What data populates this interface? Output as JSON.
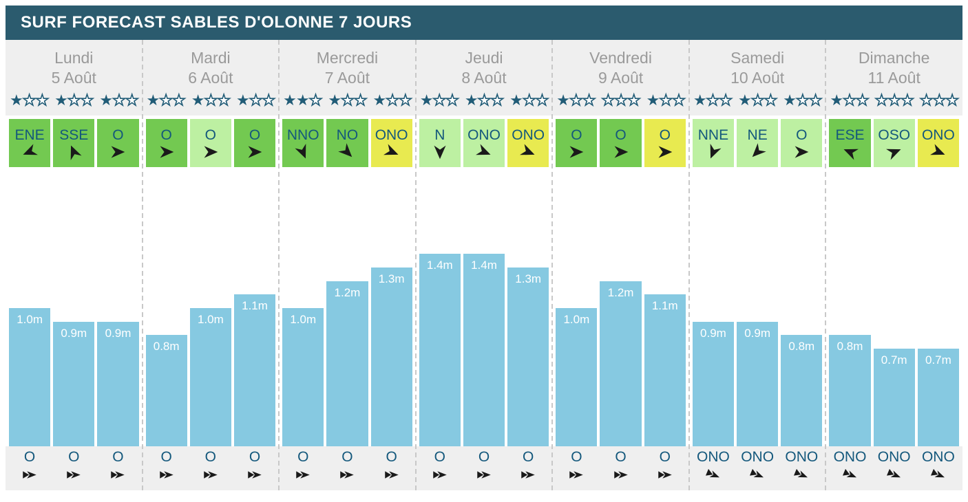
{
  "header": {
    "title": "SURF FORECAST SABLES D'OLONNE 7 JOURS"
  },
  "icons": {
    "star": "★",
    "wind_arrow": "arrowhead",
    "swell_arrow": "double-arrowhead"
  },
  "colors": {
    "header_bg": "#2b5b6e",
    "star_teal": "#215c77",
    "direction_label_teal": "#14587c",
    "wind_green": "#73c951",
    "wind_light_green": "#bdf0a2",
    "wind_yellow": "#e8ea50",
    "bar_blue": "#86c9e1",
    "band_gray": "#efefef",
    "day_text_gray": "#9a9a9a",
    "arrow_black": "#1a1a1a"
  },
  "days": [
    {
      "name": "Lundi",
      "date": "5 Août",
      "ratings": [
        1,
        1,
        1
      ],
      "wind": [
        {
          "dir": "ENE",
          "color": "green"
        },
        {
          "dir": "SSE",
          "color": "green"
        },
        {
          "dir": "O",
          "color": "green"
        }
      ],
      "waves": [
        {
          "label": "1.0m",
          "value": 1.0
        },
        {
          "label": "0.9m",
          "value": 0.9
        },
        {
          "label": "0.9m",
          "value": 0.9
        }
      ],
      "swell": [
        {
          "dir": "O"
        },
        {
          "dir": "O"
        },
        {
          "dir": "O"
        }
      ]
    },
    {
      "name": "Mardi",
      "date": "6 Août",
      "ratings": [
        1,
        1,
        1
      ],
      "wind": [
        {
          "dir": "O",
          "color": "green"
        },
        {
          "dir": "O",
          "color": "lightgreen"
        },
        {
          "dir": "O",
          "color": "green"
        }
      ],
      "waves": [
        {
          "label": "0.8m",
          "value": 0.8
        },
        {
          "label": "1.0m",
          "value": 1.0
        },
        {
          "label": "1.1m",
          "value": 1.1
        }
      ],
      "swell": [
        {
          "dir": "O"
        },
        {
          "dir": "O"
        },
        {
          "dir": "O"
        }
      ]
    },
    {
      "name": "Mercredi",
      "date": "7 Août",
      "ratings": [
        2,
        1,
        1
      ],
      "wind": [
        {
          "dir": "NNO",
          "color": "green"
        },
        {
          "dir": "NO",
          "color": "green"
        },
        {
          "dir": "ONO",
          "color": "yellow"
        }
      ],
      "waves": [
        {
          "label": "1.0m",
          "value": 1.0
        },
        {
          "label": "1.2m",
          "value": 1.2
        },
        {
          "label": "1.3m",
          "value": 1.3
        }
      ],
      "swell": [
        {
          "dir": "O"
        },
        {
          "dir": "O"
        },
        {
          "dir": "O"
        }
      ]
    },
    {
      "name": "Jeudi",
      "date": "8 Août",
      "ratings": [
        1,
        1,
        1
      ],
      "wind": [
        {
          "dir": "N",
          "color": "lightgreen"
        },
        {
          "dir": "ONO",
          "color": "lightgreen"
        },
        {
          "dir": "ONO",
          "color": "yellow"
        }
      ],
      "waves": [
        {
          "label": "1.4m",
          "value": 1.4
        },
        {
          "label": "1.4m",
          "value": 1.4
        },
        {
          "label": "1.3m",
          "value": 1.3
        }
      ],
      "swell": [
        {
          "dir": "O"
        },
        {
          "dir": "O"
        },
        {
          "dir": "O"
        }
      ]
    },
    {
      "name": "Vendredi",
      "date": "9 Août",
      "ratings": [
        1,
        0,
        1
      ],
      "wind": [
        {
          "dir": "O",
          "color": "green"
        },
        {
          "dir": "O",
          "color": "green"
        },
        {
          "dir": "O",
          "color": "yellow"
        }
      ],
      "waves": [
        {
          "label": "1.0m",
          "value": 1.0
        },
        {
          "label": "1.2m",
          "value": 1.2
        },
        {
          "label": "1.1m",
          "value": 1.1
        }
      ],
      "swell": [
        {
          "dir": "O"
        },
        {
          "dir": "O"
        },
        {
          "dir": "O"
        }
      ]
    },
    {
      "name": "Samedi",
      "date": "10 Août",
      "ratings": [
        1,
        1,
        1
      ],
      "wind": [
        {
          "dir": "NNE",
          "color": "lightgreen"
        },
        {
          "dir": "NE",
          "color": "lightgreen"
        },
        {
          "dir": "O",
          "color": "lightgreen"
        }
      ],
      "waves": [
        {
          "label": "0.9m",
          "value": 0.9
        },
        {
          "label": "0.9m",
          "value": 0.9
        },
        {
          "label": "0.8m",
          "value": 0.8
        }
      ],
      "swell": [
        {
          "dir": "ONO"
        },
        {
          "dir": "ONO"
        },
        {
          "dir": "ONO"
        }
      ]
    },
    {
      "name": "Dimanche",
      "date": "11 Août",
      "ratings": [
        1,
        0,
        0
      ],
      "wind": [
        {
          "dir": "ESE",
          "color": "green"
        },
        {
          "dir": "OSO",
          "color": "lightgreen"
        },
        {
          "dir": "ONO",
          "color": "yellow"
        }
      ],
      "waves": [
        {
          "label": "0.8m",
          "value": 0.8
        },
        {
          "label": "0.7m",
          "value": 0.7
        },
        {
          "label": "0.7m",
          "value": 0.7
        }
      ],
      "swell": [
        {
          "dir": "ONO"
        },
        {
          "dir": "ONO"
        },
        {
          "dir": "ONO"
        }
      ]
    }
  ],
  "chart_data": {
    "type": "bar",
    "title": "SURF FORECAST SABLES D'OLONNE 7 JOURS",
    "xlabel": "",
    "ylabel": "",
    "unit": "m",
    "ylim": [
      0,
      2
    ],
    "grid": false,
    "bar_color": "#86c9e1",
    "data_labels": true,
    "groups": [
      {
        "category": "Lundi 5 Août",
        "values": [
          1.0,
          0.9,
          0.9
        ]
      },
      {
        "category": "Mardi 6 Août",
        "values": [
          0.8,
          1.0,
          1.1
        ]
      },
      {
        "category": "Mercredi 7 Août",
        "values": [
          1.0,
          1.2,
          1.3
        ]
      },
      {
        "category": "Jeudi 8 Août",
        "values": [
          1.4,
          1.4,
          1.3
        ]
      },
      {
        "category": "Vendredi 9 Août",
        "values": [
          1.0,
          1.2,
          1.1
        ]
      },
      {
        "category": "Samedi 10 Août",
        "values": [
          0.9,
          0.9,
          0.8
        ]
      },
      {
        "category": "Dimanche 11 Août",
        "values": [
          0.8,
          0.7,
          0.7
        ]
      }
    ]
  }
}
